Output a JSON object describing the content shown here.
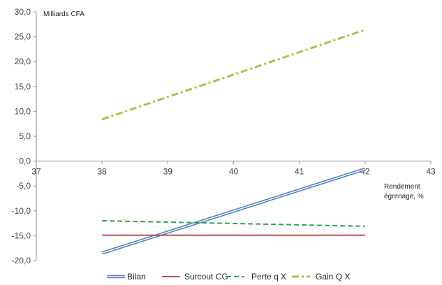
{
  "chart_data": {
    "type": "line",
    "title": "",
    "unit_label": "Milliards CFA",
    "xlabel_line1": "Rendement",
    "xlabel_line2": "égrenage, %",
    "xlim": [
      37,
      43
    ],
    "ylim": [
      -20,
      30
    ],
    "x_ticks": [
      37,
      38,
      39,
      40,
      41,
      42,
      43
    ],
    "y_ticks": [
      30,
      25,
      20,
      15,
      10,
      5,
      0,
      -5,
      -10,
      -15,
      -20
    ],
    "x_tick_labels": [
      "37",
      "38",
      "39",
      "40",
      "41",
      "42",
      "43"
    ],
    "y_tick_labels": [
      "30,0",
      "25,0",
      "20,0",
      "15,0",
      "10,0",
      "5,0",
      "0,0",
      "-5,0",
      "-10,0",
      "-15,0",
      "-20,0"
    ],
    "grid": false,
    "legend_position": "bottom",
    "series": [
      {
        "name": "Bilan",
        "x": [
          38,
          42
        ],
        "y": [
          -18.5,
          -1.6
        ],
        "color": "#4f81bd",
        "style": "double"
      },
      {
        "name": "Surcout CG",
        "x": [
          38,
          42
        ],
        "y": [
          -14.9,
          -14.9
        ],
        "color": "#c0504d",
        "style": "solid"
      },
      {
        "name": "Perte q X",
        "x": [
          38,
          42
        ],
        "y": [
          -12.0,
          -13.1
        ],
        "color": "#2da44e",
        "style": "dashed"
      },
      {
        "name": "Gain Q X",
        "x": [
          38,
          42
        ],
        "y": [
          8.4,
          26.4
        ],
        "color": "#9bc94a",
        "style": "dashdot"
      }
    ]
  }
}
